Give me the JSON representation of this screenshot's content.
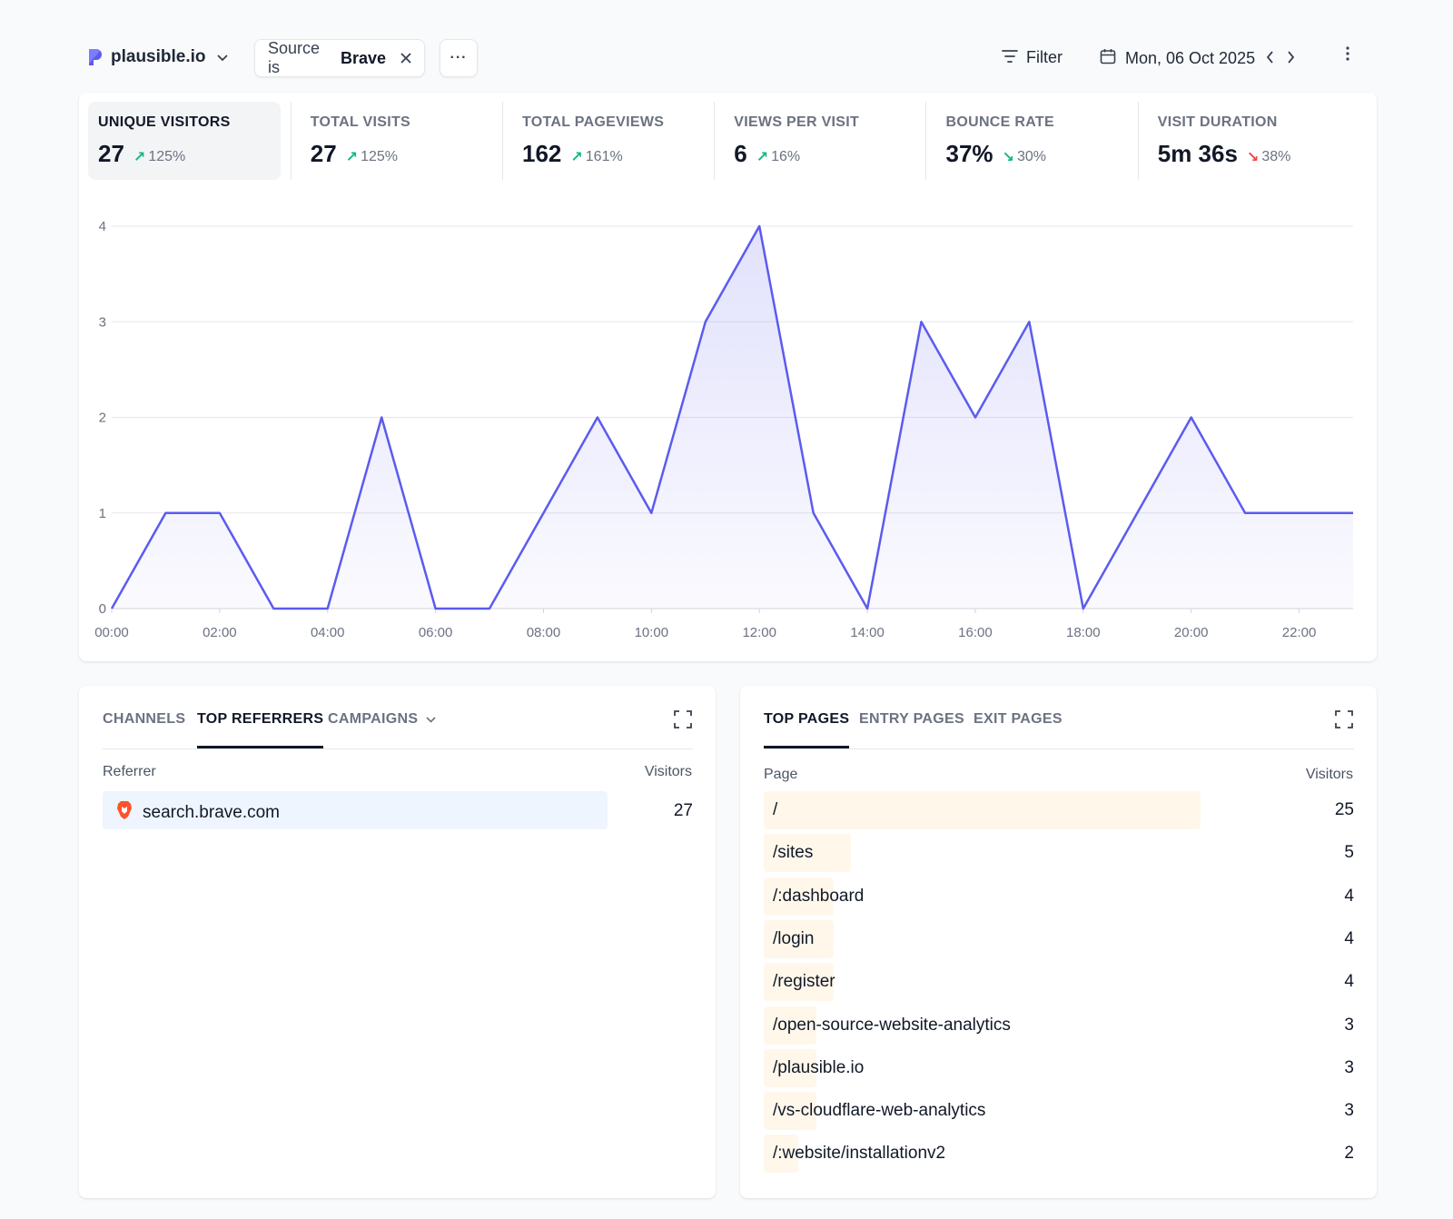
{
  "topbar": {
    "site_name": "plausible.io",
    "filter_prefix": "Source is",
    "filter_value": "Brave",
    "more_label": "···",
    "filter_button": "Filter",
    "date": "Mon, 06 Oct 2025"
  },
  "stats": [
    {
      "label": "UNIQUE VISITORS",
      "value": "27",
      "change": "125%",
      "direction": "up"
    },
    {
      "label": "TOTAL VISITS",
      "value": "27",
      "change": "125%",
      "direction": "up"
    },
    {
      "label": "TOTAL PAGEVIEWS",
      "value": "162",
      "change": "161%",
      "direction": "up"
    },
    {
      "label": "VIEWS PER VISIT",
      "value": "6",
      "change": "16%",
      "direction": "up"
    },
    {
      "label": "BOUNCE RATE",
      "value": "37%",
      "change": "30%",
      "direction": "down-good"
    },
    {
      "label": "VISIT DURATION",
      "value": "5m 36s",
      "change": "38%",
      "direction": "down-bad"
    }
  ],
  "colors": {
    "line": "#5b5bf0",
    "up": "#10b981",
    "down_bad": "#ef4444",
    "referrer_bar": "#eef5ff",
    "page_bar": "#fff7ea"
  },
  "chart_data": {
    "type": "area",
    "x": [
      "00:00",
      "01:00",
      "02:00",
      "03:00",
      "04:00",
      "05:00",
      "06:00",
      "07:00",
      "08:00",
      "09:00",
      "10:00",
      "11:00",
      "12:00",
      "13:00",
      "14:00",
      "15:00",
      "16:00",
      "17:00",
      "18:00",
      "19:00",
      "20:00",
      "21:00",
      "22:00",
      "23:00"
    ],
    "x_tick_labels": [
      "00:00",
      "02:00",
      "04:00",
      "06:00",
      "08:00",
      "10:00",
      "12:00",
      "14:00",
      "16:00",
      "18:00",
      "20:00",
      "22:00"
    ],
    "y_tick_labels": [
      "0",
      "1",
      "2",
      "3",
      "4"
    ],
    "series": [
      {
        "values": [
          0,
          1,
          1,
          0,
          0,
          2,
          0,
          0,
          1,
          2,
          1,
          3,
          4,
          1,
          0,
          3,
          2,
          3,
          0,
          1,
          2,
          1,
          1,
          1
        ]
      }
    ],
    "ylim": [
      0,
      4
    ],
    "grid": true
  },
  "sources": {
    "tabs": [
      "CHANNELS",
      "TOP REFERRERS",
      "CAMPAIGNS"
    ],
    "active_tab": 1,
    "col_referrer": "Referrer",
    "col_visitors": "Visitors",
    "rows": [
      {
        "name": "search.brave.com",
        "visitors": "27",
        "fraction": 1.0
      }
    ]
  },
  "pages": {
    "tabs": [
      "TOP PAGES",
      "ENTRY PAGES",
      "EXIT PAGES"
    ],
    "active_tab": 0,
    "col_page": "Page",
    "col_visitors": "Visitors",
    "rows": [
      {
        "name": "/",
        "visitors": "25",
        "fraction": 1.0
      },
      {
        "name": "/sites",
        "visitors": "5",
        "fraction": 0.2
      },
      {
        "name": "/:dashboard",
        "visitors": "4",
        "fraction": 0.16
      },
      {
        "name": "/login",
        "visitors": "4",
        "fraction": 0.16
      },
      {
        "name": "/register",
        "visitors": "4",
        "fraction": 0.16
      },
      {
        "name": "/open-source-website-analytics",
        "visitors": "3",
        "fraction": 0.12
      },
      {
        "name": "/plausible.io",
        "visitors": "3",
        "fraction": 0.12
      },
      {
        "name": "/vs-cloudflare-web-analytics",
        "visitors": "3",
        "fraction": 0.12
      },
      {
        "name": "/:website/installationv2",
        "visitors": "2",
        "fraction": 0.08
      }
    ]
  }
}
